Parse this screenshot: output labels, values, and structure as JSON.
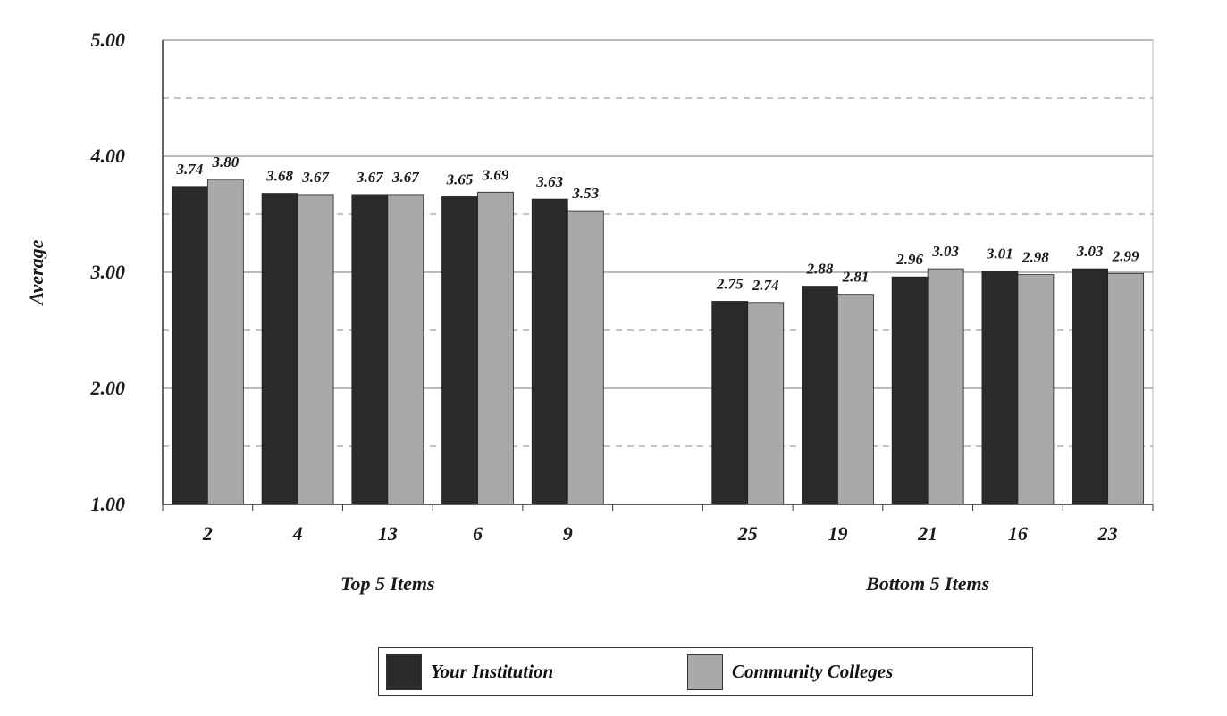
{
  "chart_data": {
    "type": "bar",
    "ylabel": "Average",
    "ylim": [
      1.0,
      5.0
    ],
    "yticks": [
      "1.00",
      "2.00",
      "3.00",
      "4.00",
      "5.00"
    ],
    "grid": "solid major lines at each 1.00, dashed minor lines at each .50",
    "groups": [
      {
        "label": "Top 5 Items",
        "categories": [
          "2",
          "4",
          "13",
          "6",
          "9"
        ]
      },
      {
        "label": "Bottom 5 Items",
        "categories": [
          "25",
          "19",
          "21",
          "16",
          "23"
        ]
      }
    ],
    "series": [
      {
        "name": "Your Institution",
        "color": "#2a2a2a",
        "values": [
          3.74,
          3.68,
          3.67,
          3.65,
          3.63,
          2.75,
          2.88,
          2.96,
          3.01,
          3.03
        ],
        "labels": [
          "3.74",
          "3.68",
          "3.67",
          "3.65",
          "3.63",
          "2.75",
          "2.88",
          "2.96",
          "3.01",
          "3.03"
        ]
      },
      {
        "name": "Community Colleges",
        "color": "#a9a9a9",
        "values": [
          3.8,
          3.67,
          3.67,
          3.69,
          3.53,
          2.74,
          2.81,
          3.03,
          2.98,
          2.99
        ],
        "labels": [
          "3.80",
          "3.67",
          "3.67",
          "3.69",
          "3.53",
          "2.74",
          "2.81",
          "3.03",
          "2.98",
          "2.99"
        ]
      }
    ],
    "legend_position": "bottom-center"
  }
}
